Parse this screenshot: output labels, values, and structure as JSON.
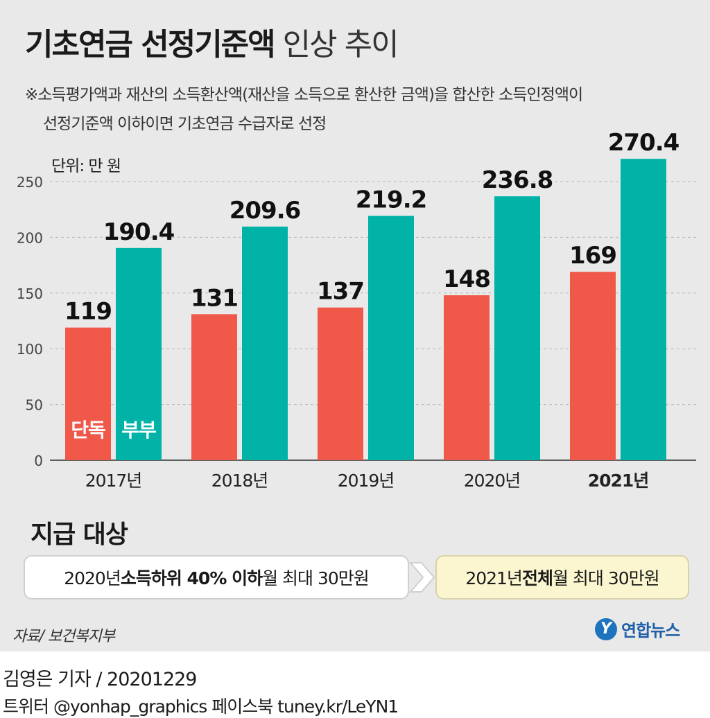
{
  "header": {
    "title_bold": "기초연금 선정기준액",
    "title_light": "인상 추이",
    "note_line1": "※소득평가액과 재산의 소득환산액(재산을 소득으로 환산한 금액)을 합산한 소득인정액이",
    "note_line2": "선정기준액 이하이면 기초연금 수급자로 선정",
    "unit": "단위: 만 원"
  },
  "chart_data": {
    "type": "bar",
    "categories": [
      "2017년",
      "2018년",
      "2019년",
      "2020년",
      "2021년"
    ],
    "series": [
      {
        "name": "단독",
        "values": [
          119,
          131,
          137,
          148,
          169
        ],
        "color": "#f0584a"
      },
      {
        "name": "부부",
        "values": [
          190.4,
          209.6,
          219.2,
          236.8,
          270.4
        ],
        "color": "#00b3a6"
      }
    ],
    "data_labels": {
      "단독": [
        "119",
        "131",
        "137",
        "148",
        "169"
      ],
      "부부": [
        "190.4",
        "209.6",
        "219.2",
        "236.8",
        "270.4"
      ]
    },
    "yticks": [
      "0",
      "50",
      "100",
      "150",
      "200",
      "250"
    ],
    "ylim": [
      0,
      250
    ],
    "grid": true,
    "legend": "inside-first-bars"
  },
  "eligibility": {
    "title": "지급 대상",
    "box1": {
      "pre": "2020년 ",
      "bold": "소득하위 40% 이하",
      "post": " 월 최대 30만원"
    },
    "box2": {
      "pre": "2021년 ",
      "bold": "전체",
      "post": " 월 최대 30만원"
    }
  },
  "source": "자료/ 보건복지부",
  "logo": {
    "mark": "Y",
    "text": "연합뉴스"
  },
  "footer": {
    "line1_name": "김영은 기자",
    "line1_date": " / 20201229",
    "line2": "트위터 @yonhap_graphics  페이스북 tuney.kr/LeYN1"
  },
  "colors": {
    "single": "#f0584a",
    "couple": "#00b3a6",
    "background": "#e9e9e9"
  }
}
